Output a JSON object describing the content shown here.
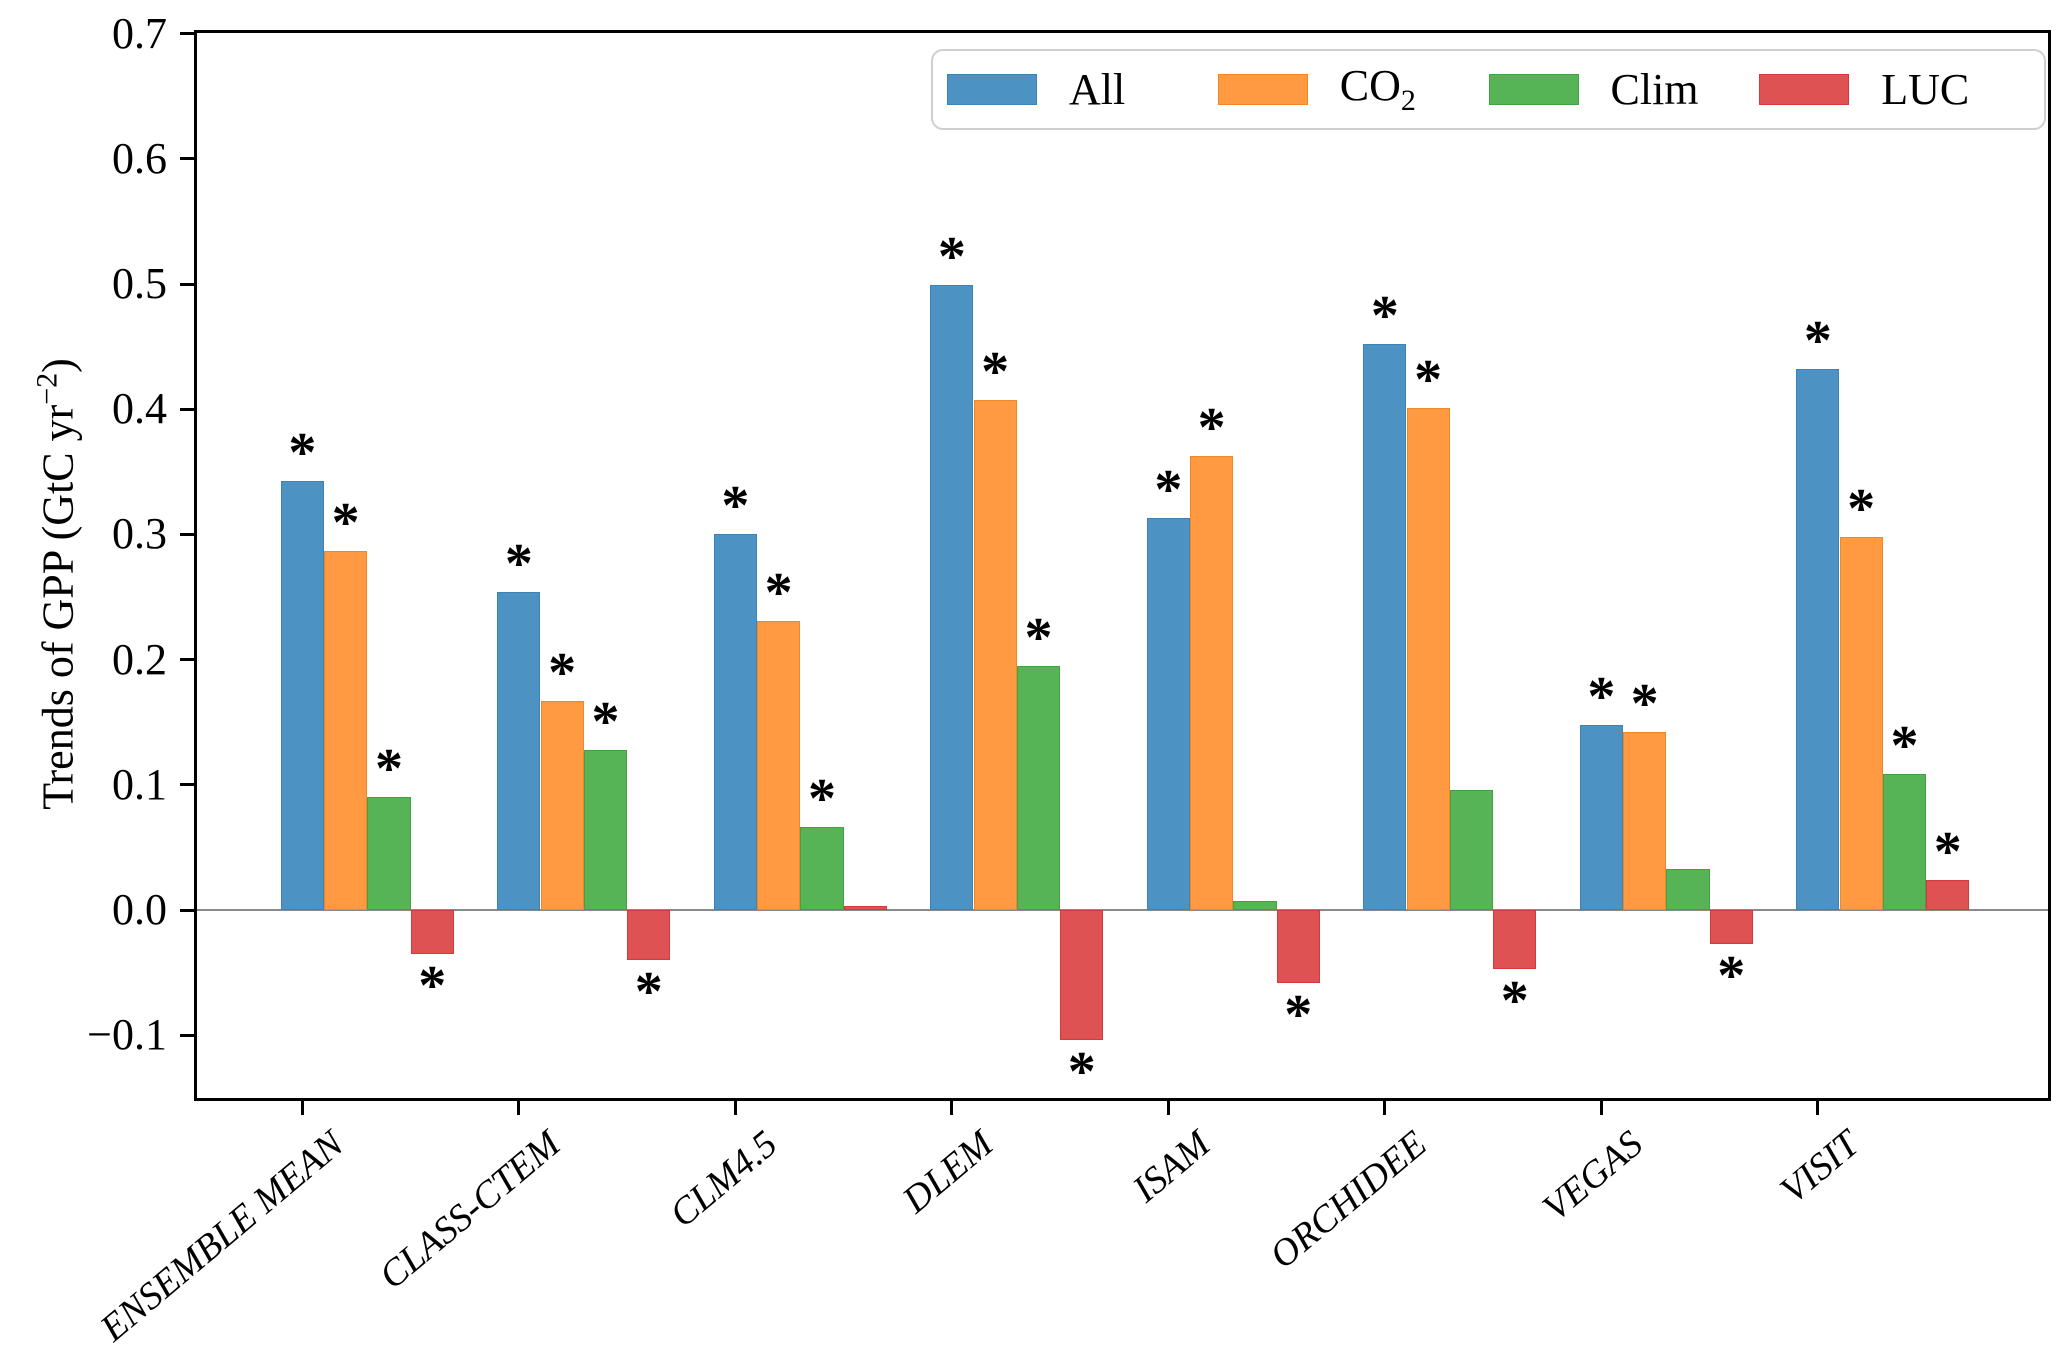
{
  "chart": {
    "ylabel_text": "Trends of GPP (GtC yr",
    "ylabel_sup": "−2",
    "ylabel_suffix": ")"
  },
  "chart_data": {
    "type": "bar",
    "title": "",
    "xlabel": "",
    "ylabel": "Trends of GPP (GtC yr^-2)",
    "categories": [
      "ENSEMBLE MEAN",
      "CLASS-CTEM",
      "CLM4.5",
      "DLEM",
      "ISAM",
      "ORCHIDEE",
      "VEGAS",
      "VISIT"
    ],
    "series": [
      {
        "name": "All",
        "legend": {
          "label": "All",
          "sub": ""
        },
        "color": "#4C92C3",
        "edge_color": "#3d83b6",
        "values": [
          0.343,
          0.254,
          0.3,
          0.499,
          0.313,
          0.452,
          0.148,
          0.432
        ],
        "significant": [
          true,
          true,
          true,
          true,
          true,
          true,
          true,
          true
        ]
      },
      {
        "name": "CO2",
        "legend": {
          "label": "CO",
          "sub": "2"
        },
        "color": "#FF9942",
        "edge_color": "#f18722",
        "values": [
          0.287,
          0.167,
          0.231,
          0.407,
          0.363,
          0.401,
          0.142,
          0.298
        ],
        "significant": [
          true,
          true,
          true,
          true,
          true,
          true,
          true,
          true
        ]
      },
      {
        "name": "Clim",
        "legend": {
          "label": "Clim",
          "sub": ""
        },
        "color": "#56B356",
        "edge_color": "#41a341",
        "values": [
          0.09,
          0.128,
          0.066,
          0.195,
          0.007,
          0.096,
          0.033,
          0.109
        ],
        "significant": [
          true,
          true,
          true,
          true,
          false,
          false,
          false,
          true
        ]
      },
      {
        "name": "LUC",
        "legend": {
          "label": "LUC",
          "sub": ""
        },
        "color": "#DE5253",
        "edge_color": "#d43a3b",
        "values": [
          -0.035,
          -0.04,
          0.003,
          -0.104,
          -0.058,
          -0.047,
          -0.027,
          0.024
        ],
        "significant": [
          true,
          true,
          false,
          true,
          true,
          true,
          true,
          true
        ]
      }
    ],
    "yticks": [
      0.7,
      0.6,
      0.5,
      0.4,
      0.3,
      0.2,
      0.1,
      0.0,
      -0.1
    ],
    "ylim": [
      -0.15,
      0.7
    ],
    "significance_marker": "*",
    "legend_position": "upper right",
    "grid": false,
    "zero_line": true,
    "zero_line_color": "#8a8a8a"
  }
}
